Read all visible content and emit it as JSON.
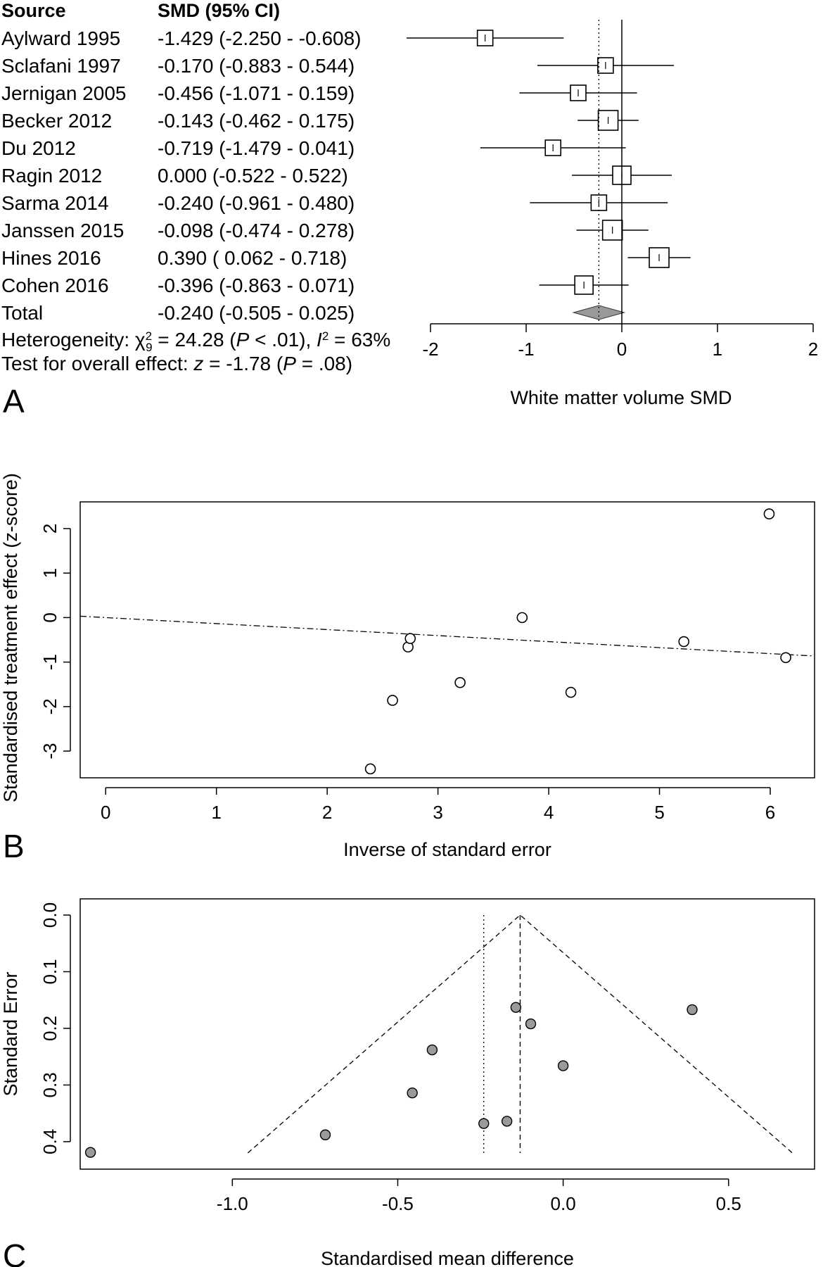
{
  "panel_labels": [
    "A",
    "B",
    "C"
  ],
  "chart_data": [
    {
      "type": "forest",
      "headers": {
        "source": "Source",
        "smd": "SMD (95% CI)"
      },
      "studies": [
        {
          "source": "Aylward  1995",
          "smd": -1.429,
          "lo": -2.25,
          "hi": -0.608,
          "ci_text": "-1.429 (-2.250 - -0.608)"
        },
        {
          "source": "Sclafani 1997",
          "smd": -0.17,
          "lo": -0.883,
          "hi": 0.544,
          "ci_text": "-0.170 (-0.883 -  0.544)"
        },
        {
          "source": "Jernigan 2005",
          "smd": -0.456,
          "lo": -1.071,
          "hi": 0.159,
          "ci_text": "-0.456 (-1.071 -  0.159)"
        },
        {
          "source": "Becker 2012",
          "smd": -0.143,
          "lo": -0.462,
          "hi": 0.175,
          "ci_text": "-0.143 (-0.462 -  0.175)"
        },
        {
          "source": "Du 2012",
          "smd": -0.719,
          "lo": -1.479,
          "hi": 0.041,
          "ci_text": "-0.719 (-1.479 -  0.041)"
        },
        {
          "source": "Ragin  2012",
          "smd": 0.0,
          "lo": -0.522,
          "hi": 0.522,
          "ci_text": "0.000 (-0.522 -  0.522)"
        },
        {
          "source": "Sarma 2014",
          "smd": -0.24,
          "lo": -0.961,
          "hi": 0.48,
          "ci_text": "-0.240 (-0.961 -  0.480)"
        },
        {
          "source": "Janssen 2015",
          "smd": -0.098,
          "lo": -0.474,
          "hi": 0.278,
          "ci_text": "-0.098 (-0.474 -  0.278)"
        },
        {
          "source": "Hines  2016",
          "smd": 0.39,
          "lo": 0.062,
          "hi": 0.718,
          "ci_text": "0.390 ( 0.062 -  0.718)"
        },
        {
          "source": "Cohen 2016",
          "smd": -0.396,
          "lo": -0.863,
          "hi": 0.071,
          "ci_text": "-0.396 (-0.863 -  0.071)"
        }
      ],
      "total": {
        "source": "Total",
        "smd": -0.24,
        "lo": -0.505,
        "hi": 0.025,
        "ci_text": "-0.240 (-0.505 -  0.025)"
      },
      "heterogeneity_text": "Heterogeneity: χ²₉ = 24.28 (P < .01), I² = 63%",
      "overall_effect_text": "Test for overall effect: z = -1.78 (P = .08)",
      "xlabel": "White matter volume SMD",
      "xticks": [
        "-2",
        "-1",
        "0",
        "1",
        "2"
      ],
      "xlim": [
        -2,
        2
      ]
    },
    {
      "type": "scatter",
      "xlabel": "Inverse of standard error",
      "ylabel": "Standardised treatment effect (z-score)",
      "xticks": [
        "0",
        "1",
        "2",
        "3",
        "4",
        "5",
        "6"
      ],
      "yticks": [
        "-3",
        "-2",
        "-1",
        "0",
        "1",
        "2"
      ],
      "xlim": [
        -0.23,
        6.4
      ],
      "ylim": [
        -3.6,
        2.6
      ],
      "points": [
        {
          "x": 2.39,
          "y": -3.4
        },
        {
          "x": 2.59,
          "y": -1.86
        },
        {
          "x": 2.73,
          "y": -0.66
        },
        {
          "x": 2.75,
          "y": -0.47
        },
        {
          "x": 3.2,
          "y": -1.46
        },
        {
          "x": 3.76,
          "y": 0.0
        },
        {
          "x": 4.2,
          "y": -1.68
        },
        {
          "x": 5.22,
          "y": -0.54
        },
        {
          "x": 5.99,
          "y": 2.33
        },
        {
          "x": 6.14,
          "y": -0.9
        }
      ],
      "regression_line": {
        "intercept": 0.0,
        "slope": -0.135
      }
    },
    {
      "type": "funnel",
      "xlabel": "Standardised mean difference",
      "ylabel": "Standard Error",
      "xticks": [
        "-1.0",
        "-0.5",
        "0.0",
        "0.5"
      ],
      "yticks": [
        "0.0",
        "0.1",
        "0.2",
        "0.3",
        "0.4"
      ],
      "xlim": [
        -1.46,
        0.76
      ],
      "ylim": [
        0.0,
        0.42
      ],
      "points": [
        {
          "x": -1.429,
          "y": 0.419
        },
        {
          "x": -0.719,
          "y": 0.388
        },
        {
          "x": -0.456,
          "y": 0.314
        },
        {
          "x": -0.396,
          "y": 0.238
        },
        {
          "x": -0.24,
          "y": 0.368
        },
        {
          "x": -0.17,
          "y": 0.364
        },
        {
          "x": -0.143,
          "y": 0.163
        },
        {
          "x": -0.098,
          "y": 0.192
        },
        {
          "x": 0.0,
          "y": 0.266
        },
        {
          "x": 0.39,
          "y": 0.167
        }
      ],
      "pooled_fixed": -0.13,
      "pooled_random": -0.24,
      "funnel_se_max": 0.42
    }
  ]
}
